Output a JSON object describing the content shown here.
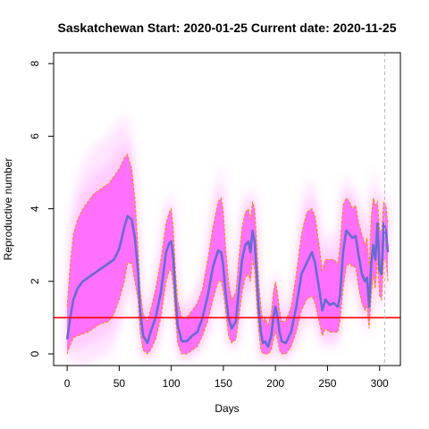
{
  "chart_data": {
    "type": "line",
    "title": "Saskatchewan Start:  2020-01-25   Current date:  2020-11-25",
    "xlabel": "Days",
    "ylabel": "Reproductive number",
    "xlim": [
      -13,
      320
    ],
    "ylim": [
      -0.32,
      8.3
    ],
    "x_ticks": [
      0,
      50,
      100,
      150,
      200,
      250,
      300
    ],
    "y_ticks": [
      0,
      2,
      4,
      6,
      8
    ],
    "grid": false,
    "reference_line": {
      "y": 1,
      "color": "#ff0000"
    },
    "current_day_marker": {
      "x": 305,
      "color": "#bbbbbb"
    },
    "colors": {
      "median": "#6a6ad0",
      "band": "#ff66ff",
      "band_fade": "#ffb8ff",
      "interval": "#ff8c00"
    },
    "series": [
      {
        "role": "median",
        "x": [
          0,
          3,
          6,
          10,
          15,
          20,
          25,
          30,
          35,
          40,
          45,
          50,
          55,
          58,
          62,
          65,
          68,
          70,
          73,
          77,
          80,
          85,
          90,
          95,
          98,
          100,
          102,
          104,
          106,
          110,
          115,
          120,
          125,
          130,
          135,
          140,
          145,
          148,
          150,
          152,
          155,
          158,
          162,
          165,
          168,
          171,
          174,
          176,
          178,
          180,
          182,
          184,
          186,
          188,
          190,
          193,
          196,
          198,
          200,
          202,
          204,
          206,
          210,
          215,
          220,
          225,
          230,
          235,
          238,
          242,
          245,
          248,
          252,
          256,
          260,
          262,
          265,
          268,
          271,
          274,
          277,
          280,
          283,
          286,
          288,
          290,
          292,
          294,
          296,
          298,
          300,
          302,
          304,
          306,
          308
        ],
        "y": [
          0.4,
          1.0,
          1.5,
          1.8,
          2.0,
          2.1,
          2.2,
          2.3,
          2.4,
          2.5,
          2.6,
          2.9,
          3.5,
          3.8,
          3.7,
          3.2,
          2.3,
          1.2,
          0.5,
          0.3,
          0.6,
          1.0,
          1.7,
          2.8,
          3.05,
          3.1,
          2.6,
          1.6,
          0.8,
          0.35,
          0.35,
          0.5,
          0.6,
          1.0,
          1.6,
          2.4,
          2.85,
          2.8,
          2.4,
          1.7,
          1.0,
          0.7,
          0.9,
          1.8,
          2.6,
          3.0,
          3.1,
          2.8,
          3.4,
          3.1,
          2.2,
          1.2,
          0.6,
          0.3,
          0.35,
          0.2,
          0.5,
          1.0,
          1.3,
          1.0,
          0.6,
          0.35,
          0.3,
          0.6,
          1.3,
          2.2,
          2.5,
          2.8,
          2.5,
          1.8,
          1.2,
          1.5,
          1.35,
          1.4,
          1.3,
          1.6,
          2.8,
          3.4,
          3.3,
          3.2,
          3.25,
          2.7,
          2.2,
          2.0,
          2.1,
          1.3,
          2.5,
          3.0,
          2.6,
          3.6,
          2.3,
          2.2,
          3.6,
          3.4,
          2.8
        ]
      },
      {
        "role": "upper_interval",
        "x": [
          0,
          3,
          6,
          10,
          15,
          20,
          25,
          30,
          35,
          40,
          45,
          50,
          55,
          58,
          62,
          65,
          68,
          70,
          73,
          77,
          80,
          85,
          90,
          95,
          98,
          100,
          102,
          104,
          106,
          110,
          115,
          120,
          125,
          130,
          135,
          140,
          145,
          148,
          150,
          152,
          155,
          158,
          162,
          165,
          168,
          171,
          174,
          176,
          178,
          180,
          182,
          184,
          186,
          188,
          190,
          193,
          196,
          198,
          200,
          202,
          204,
          206,
          210,
          215,
          220,
          225,
          230,
          235,
          238,
          242,
          245,
          248,
          252,
          256,
          260,
          262,
          265,
          268,
          271,
          274,
          277,
          280,
          283,
          286,
          288,
          290,
          292,
          294,
          296,
          298,
          300,
          302,
          304,
          306,
          308
        ],
        "y": [
          1.3,
          2.5,
          3.3,
          3.7,
          4.0,
          4.2,
          4.4,
          4.5,
          4.6,
          4.7,
          4.9,
          5.1,
          5.4,
          5.5,
          5.1,
          4.3,
          3.0,
          1.8,
          1.1,
          0.9,
          1.2,
          1.8,
          2.6,
          3.6,
          3.9,
          4.0,
          3.4,
          2.3,
          1.5,
          1.0,
          1.0,
          1.2,
          1.4,
          1.8,
          2.6,
          3.5,
          4.2,
          4.3,
          3.9,
          3.0,
          2.0,
          1.5,
          1.7,
          2.7,
          3.5,
          3.9,
          4.0,
          3.7,
          4.2,
          4.0,
          3.1,
          2.0,
          1.3,
          0.9,
          1.0,
          0.8,
          1.1,
          1.7,
          2.0,
          1.7,
          1.2,
          0.9,
          0.9,
          1.3,
          2.2,
          3.3,
          3.9,
          4.0,
          3.8,
          3.0,
          2.3,
          2.6,
          2.6,
          2.6,
          2.5,
          3.0,
          4.1,
          4.3,
          4.2,
          4.0,
          4.1,
          3.6,
          3.3,
          3.0,
          3.2,
          2.4,
          3.8,
          4.3,
          4.1,
          4.2,
          3.4,
          3.4,
          4.2,
          4.1,
          3.6
        ]
      },
      {
        "role": "lower_interval",
        "x": [
          0,
          3,
          6,
          10,
          15,
          20,
          25,
          30,
          35,
          40,
          45,
          50,
          55,
          58,
          62,
          65,
          68,
          70,
          73,
          77,
          80,
          85,
          90,
          95,
          98,
          100,
          102,
          104,
          106,
          110,
          115,
          120,
          125,
          130,
          135,
          140,
          145,
          148,
          150,
          152,
          155,
          158,
          162,
          165,
          168,
          171,
          174,
          176,
          178,
          180,
          182,
          184,
          186,
          188,
          190,
          193,
          196,
          198,
          200,
          202,
          204,
          206,
          210,
          215,
          220,
          225,
          230,
          235,
          238,
          242,
          245,
          248,
          252,
          256,
          260,
          262,
          265,
          268,
          271,
          274,
          277,
          280,
          283,
          286,
          288,
          290,
          292,
          294,
          296,
          298,
          300,
          302,
          304,
          306,
          308
        ],
        "y": [
          0.0,
          0.25,
          0.45,
          0.5,
          0.55,
          0.6,
          0.7,
          0.8,
          0.85,
          0.9,
          1.1,
          1.5,
          2.0,
          2.5,
          2.5,
          2.0,
          1.5,
          0.6,
          0.1,
          0.0,
          0.1,
          0.4,
          1.0,
          2.0,
          2.3,
          2.3,
          1.8,
          1.0,
          0.3,
          0.0,
          0.0,
          0.1,
          0.2,
          0.5,
          0.9,
          1.5,
          2.0,
          2.0,
          1.7,
          1.2,
          0.5,
          0.3,
          0.4,
          1.0,
          1.7,
          2.1,
          2.2,
          2.0,
          2.6,
          2.3,
          1.4,
          0.6,
          0.1,
          0.0,
          0.0,
          0.0,
          0.1,
          0.4,
          0.6,
          0.4,
          0.1,
          0.0,
          0.0,
          0.2,
          0.6,
          1.2,
          1.5,
          1.6,
          1.4,
          0.9,
          0.5,
          0.7,
          0.6,
          0.6,
          0.6,
          0.9,
          1.8,
          2.4,
          2.5,
          2.4,
          2.4,
          1.8,
          1.4,
          1.2,
          1.3,
          0.7,
          1.6,
          2.2,
          1.8,
          2.6,
          1.6,
          1.5,
          2.6,
          2.6,
          2.0
        ]
      }
    ]
  }
}
